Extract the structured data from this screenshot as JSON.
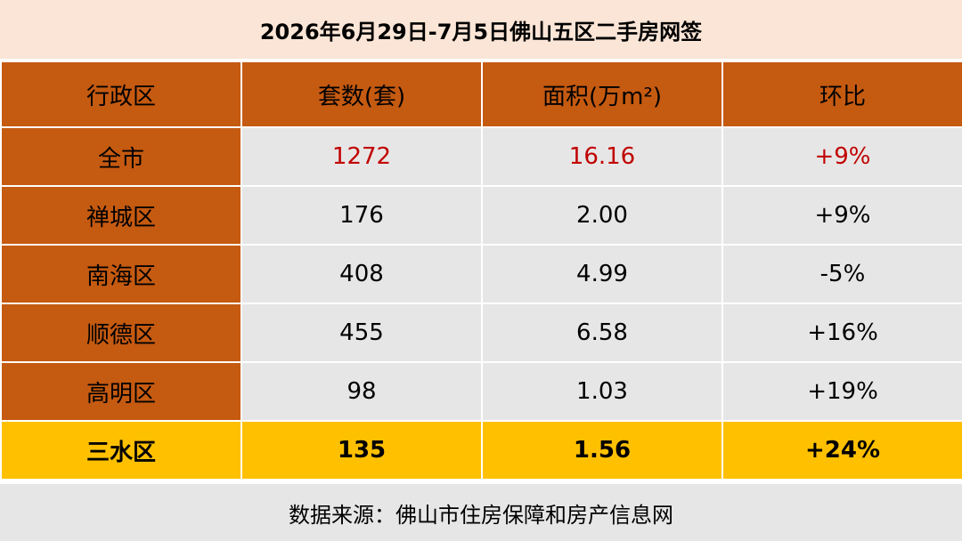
{
  "title": "2026年6月29日-7月5日佛山五区二手房网签",
  "table": {
    "headers": [
      "行政区",
      "套数(套)",
      "面积(万m²)",
      "环比"
    ],
    "rows": [
      {
        "district": "全市",
        "units": "1272",
        "area": "16.16",
        "mom": "+9%"
      },
      {
        "district": "禅城区",
        "units": "176",
        "area": "2.00",
        "mom": "+9%"
      },
      {
        "district": "南海区",
        "units": "408",
        "area": "4.99",
        "mom": "-5%"
      },
      {
        "district": "顺德区",
        "units": "455",
        "area": "6.58",
        "mom": "+16%"
      },
      {
        "district": "高明区",
        "units": "98",
        "area": "1.03",
        "mom": "+19%"
      },
      {
        "district": "三水区",
        "units": "135",
        "area": "1.56",
        "mom": "+24%"
      }
    ]
  },
  "source": "数据来源：佛山市住房保障和房产信息网",
  "colors": {
    "header_bg": "#c55a11",
    "title_bg": "#fbe5d6",
    "cell_bg": "#e7e6e6",
    "highlight_bg": "#ffc000",
    "city_text": "#c00000"
  }
}
